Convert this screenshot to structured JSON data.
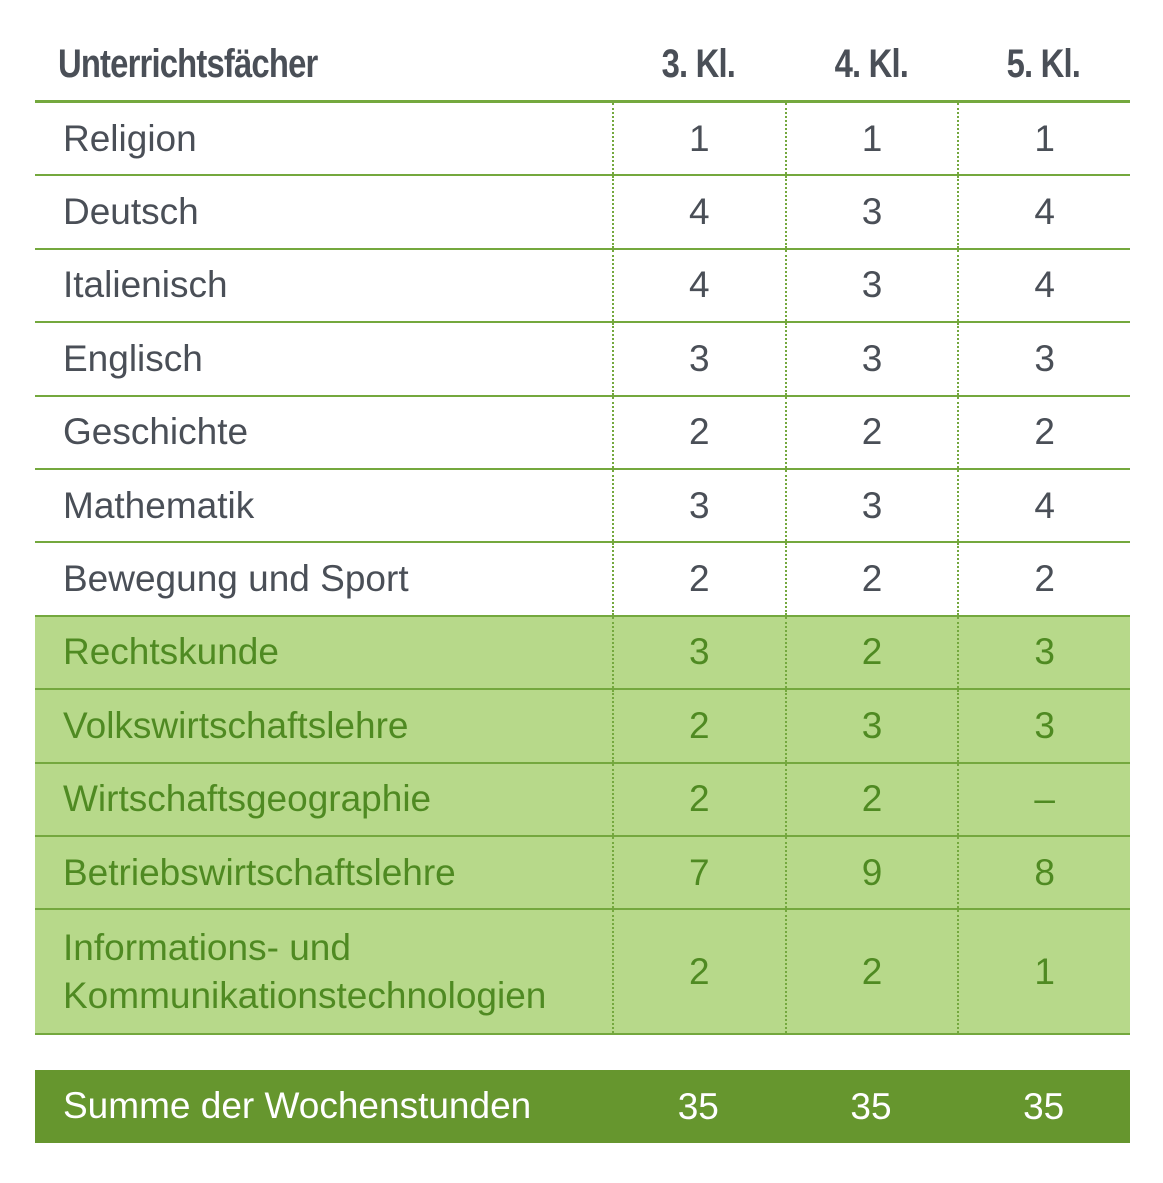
{
  "header": {
    "subject": "Unterrichtsfächer",
    "grades": [
      "3. Kl.",
      "4. Kl.",
      "5. Kl."
    ]
  },
  "rows": [
    {
      "subject": "Religion",
      "values": [
        "1",
        "1",
        "1"
      ],
      "highlight": false
    },
    {
      "subject": "Deutsch",
      "values": [
        "4",
        "3",
        "4"
      ],
      "highlight": false
    },
    {
      "subject": "Italienisch",
      "values": [
        "4",
        "3",
        "4"
      ],
      "highlight": false
    },
    {
      "subject": "Englisch",
      "values": [
        "3",
        "3",
        "3"
      ],
      "highlight": false
    },
    {
      "subject": "Geschichte",
      "values": [
        "2",
        "2",
        "2"
      ],
      "highlight": false
    },
    {
      "subject": "Mathematik",
      "values": [
        "3",
        "3",
        "4"
      ],
      "highlight": false
    },
    {
      "subject": "Bewegung und Sport",
      "values": [
        "2",
        "2",
        "2"
      ],
      "highlight": false
    },
    {
      "subject": "Rechtskunde",
      "values": [
        "3",
        "2",
        "3"
      ],
      "highlight": true
    },
    {
      "subject": "Volkswirtschaftslehre",
      "values": [
        "2",
        "3",
        "3"
      ],
      "highlight": true
    },
    {
      "subject": "Wirtschaftsgeographie",
      "values": [
        "2",
        "2",
        "–"
      ],
      "highlight": true
    },
    {
      "subject": "Betriebswirtschaftslehre",
      "values": [
        "7",
        "9",
        "8"
      ],
      "highlight": true
    },
    {
      "subject_lines": [
        "Informations- und",
        "Kommunikationstechnologien"
      ],
      "values": [
        "2",
        "2",
        "1"
      ],
      "highlight": true
    }
  ],
  "total": {
    "label": "Summe der Wochenstunden",
    "values": [
      "35",
      "35",
      "35"
    ]
  },
  "colors": {
    "line": "#74a83e",
    "highlight_bg": "#b7d98a",
    "highlight_text": "#4f8a22",
    "total_bg": "#66962e",
    "text": "#4a4f57"
  }
}
